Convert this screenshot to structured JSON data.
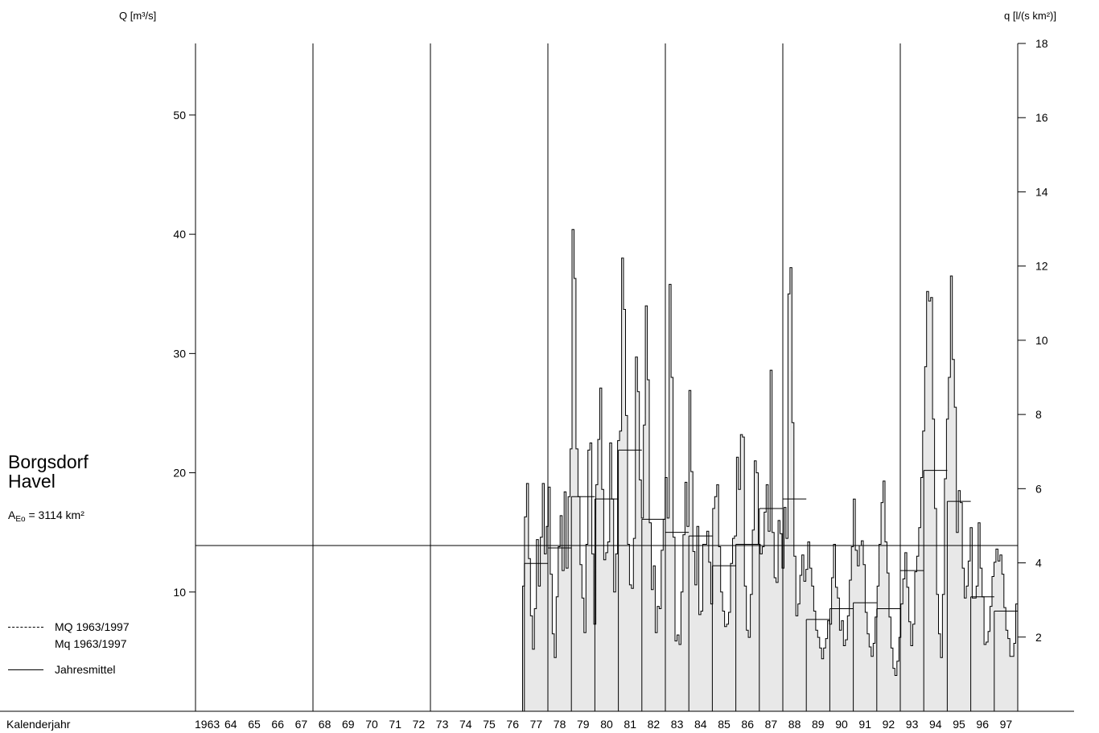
{
  "station": {
    "name_line1": "Borgsdorf",
    "name_line2": "Havel",
    "area_prefix": "A",
    "area_sub": "Eo",
    "area_value": " = 3114 km²"
  },
  "legend": {
    "mq": "MQ 1963/1997",
    "mq_small": "Mq 1963/1997",
    "annual": "Jahresmittel"
  },
  "colors": {
    "fill": "#e8e8e8",
    "line": "#000000"
  },
  "chart_data": {
    "type": "area",
    "title": "",
    "ylabel": "Q [m³/s]",
    "ylabel_right": "q [l/(s km²)]",
    "xlabel": "Kalenderjahr",
    "ylim": [
      0,
      56
    ],
    "ylim_right": [
      0,
      18
    ],
    "yticks": [
      10,
      20,
      30,
      40,
      50
    ],
    "yticks_right": [
      2,
      4,
      6,
      8,
      10,
      12,
      14,
      16,
      18
    ],
    "x_start_year": 1963,
    "x_end_year": 1998,
    "year_labels": [
      "1963",
      "64",
      "65",
      "66",
      "67",
      "68",
      "69",
      "70",
      "71",
      "72",
      "73",
      "74",
      "75",
      "76",
      "77",
      "78",
      "79",
      "80",
      "81",
      "82",
      "83",
      "84",
      "85",
      "86",
      "87",
      "88",
      "89",
      "90",
      "91",
      "92",
      "93",
      "94",
      "95",
      "96",
      "97"
    ],
    "decade_lines": [
      1963,
      1968,
      1973,
      1978,
      1983,
      1988,
      1993
    ],
    "MQ_1963_1997": 13.9,
    "annual_means": [
      {
        "year": 1977,
        "value": 12.4
      },
      {
        "year": 1978,
        "value": 13.7
      },
      {
        "year": 1979,
        "value": 18.0
      },
      {
        "year": 1980,
        "value": 17.8
      },
      {
        "year": 1981,
        "value": 21.9
      },
      {
        "year": 1982,
        "value": 16.1
      },
      {
        "year": 1983,
        "value": 15.0
      },
      {
        "year": 1984,
        "value": 14.7
      },
      {
        "year": 1985,
        "value": 12.2
      },
      {
        "year": 1986,
        "value": 14.0
      },
      {
        "year": 1987,
        "value": 17.0
      },
      {
        "year": 1988,
        "value": 17.8
      },
      {
        "year": 1989,
        "value": 7.7
      },
      {
        "year": 1990,
        "value": 8.6
      },
      {
        "year": 1991,
        "value": 9.1
      },
      {
        "year": 1992,
        "value": 8.6
      },
      {
        "year": 1993,
        "value": 11.8
      },
      {
        "year": 1994,
        "value": 20.2
      },
      {
        "year": 1995,
        "value": 17.6
      },
      {
        "year": 1996,
        "value": 9.6
      },
      {
        "year": 1997,
        "value": 8.4
      }
    ],
    "series": [
      {
        "start_year": 1976.92,
        "end_year": 1998.0,
        "values": [
          10.5,
          16.3,
          19.1,
          12.8,
          8.0,
          5.2,
          8.6,
          14.4,
          10.5,
          14.6,
          19.1,
          13.2,
          15.5,
          18.8,
          11.5,
          6.5,
          4.5,
          9.6,
          13.8,
          16.4,
          11.8,
          18.4,
          12.0,
          18.0,
          22.0,
          40.4,
          36.3,
          22.0,
          18.0,
          12.3,
          9.5,
          6.6,
          14.0,
          21.9,
          22.5,
          13.2,
          7.3,
          19.0,
          22.8,
          27.1,
          18.6,
          12.7,
          13.3,
          14.2,
          22.5,
          17.8,
          10.0,
          13.2,
          22.7,
          23.5,
          38.0,
          33.7,
          24.8,
          14.0,
          10.6,
          10.3,
          14.5,
          29.7,
          26.8,
          19.4,
          16.2,
          24.0,
          34.0,
          27.8,
          15.8,
          10.2,
          12.2,
          6.6,
          8.8,
          8.6,
          13.5,
          16.1,
          19.6,
          16.2,
          35.8,
          28.0,
          14.6,
          5.9,
          6.4,
          5.6,
          10.0,
          14.8,
          19.2,
          15.5,
          26.9,
          20.1,
          13.4,
          10.6,
          15.5,
          8.1,
          8.4,
          14.0,
          14.0,
          15.1,
          12.5,
          9.0,
          17.0,
          18.0,
          19.0,
          13.8,
          10.0,
          8.4,
          7.1,
          7.3,
          8.3,
          12.4,
          14.5,
          14.7,
          21.3,
          18.6,
          23.2,
          23.0,
          10.5,
          6.8,
          6.2,
          9.8,
          15.2,
          21.0,
          20.0,
          14.0,
          13.2,
          13.8,
          16.7,
          19.0,
          15.1,
          28.6,
          15.0,
          11.2,
          10.8,
          16.0,
          14.9,
          12.0,
          17.1,
          14.5,
          35.0,
          37.2,
          24.2,
          13.0,
          8.0,
          9.0,
          11.4,
          13.1,
          10.9,
          11.9,
          14.2,
          12.0,
          10.5,
          8.4,
          6.8,
          6.2,
          5.3,
          4.4,
          5.3,
          6.1,
          7.6,
          7.3,
          11.2,
          14.0,
          10.4,
          9.5,
          6.8,
          7.6,
          5.5,
          6.0,
          8.0,
          11.0,
          13.8,
          17.8,
          13.5,
          12.2,
          13.9,
          14.3,
          12.3,
          8.3,
          6.5,
          5.4,
          4.6,
          5.7,
          7.9,
          10.5,
          14.0,
          17.5,
          19.3,
          14.2,
          11.6,
          7.9,
          5.3,
          3.6,
          3.0,
          4.2,
          6.2,
          9.0,
          11.1,
          13.3,
          10.4,
          7.5,
          5.5,
          7.3,
          11.7,
          13.0,
          15.4,
          19.6,
          23.5,
          28.9,
          35.2,
          34.4,
          34.7,
          24.5,
          17.0,
          9.8,
          6.5,
          4.5,
          9.8,
          19.5,
          24.5,
          28.0,
          36.5,
          29.5,
          25.5,
          15.0,
          18.5,
          17.5,
          12.0,
          9.5,
          10.5,
          12.6,
          15.4,
          9.5,
          9.5,
          10.5,
          15.8,
          12.0,
          9.6,
          5.6,
          5.8,
          6.7,
          8.8,
          11.3,
          12.5,
          13.6,
          12.6,
          13.1,
          11.5,
          8.7,
          6.8,
          6.1,
          4.6,
          4.6,
          5.7,
          9.0
        ]
      }
    ]
  }
}
